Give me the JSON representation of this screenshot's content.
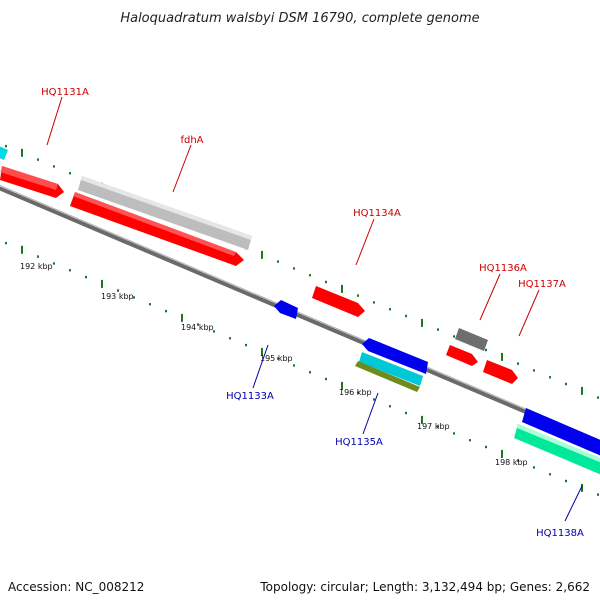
{
  "title": "Haloquadratum walsbyi DSM 16790, complete genome",
  "footer": {
    "accession": "Accession: NC_008212",
    "topology": "Topology: circular; Length: 3,132,494 bp; Genes: 2,662"
  },
  "colors": {
    "backbone": "#808080",
    "tick": "#1a7a1a",
    "forward_label": "#cc0000",
    "reverse_label": "#0000aa",
    "red_gene": "#ff0000",
    "silver_gene": "#c8c8c8",
    "dark_gene": "#6e6e6e",
    "blue_gene": "#0000ee",
    "cyan_gene": "#00c8d8",
    "olive_gene": "#6e8c1e",
    "mint_gene": "#00e89a"
  },
  "tick_labels": [
    "192 kbp",
    "193 kbp",
    "194 kbp",
    "195 kbp",
    "196 kbp",
    "197 kbp",
    "198 kbp"
  ],
  "gene_labels": [
    {
      "text": "HQ1131A",
      "strand": "forward"
    },
    {
      "text": "fdhA",
      "strand": "forward"
    },
    {
      "text": "HQ1134A",
      "strand": "forward"
    },
    {
      "text": "HQ1136A",
      "strand": "forward"
    },
    {
      "text": "HQ1137A",
      "strand": "forward"
    },
    {
      "text": "HQ1133A",
      "strand": "reverse"
    },
    {
      "text": "HQ1135A",
      "strand": "reverse"
    },
    {
      "text": "HQ1138A",
      "strand": "reverse"
    }
  ]
}
